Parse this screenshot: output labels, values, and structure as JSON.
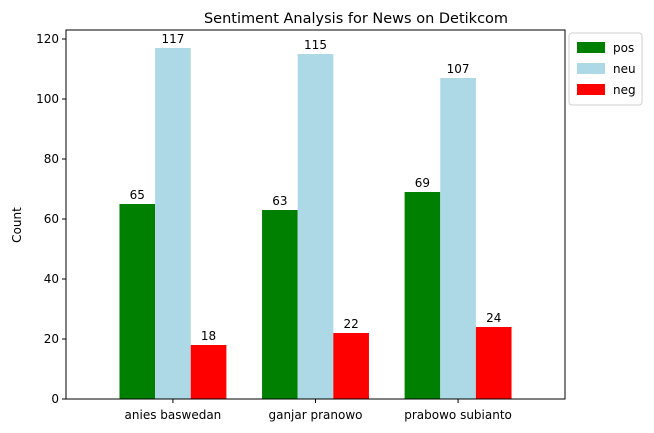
{
  "chart_data": {
    "type": "bar",
    "title": "Sentiment Analysis for News on Detikcom",
    "xlabel": "",
    "ylabel": "Count",
    "ylim": [
      0,
      123
    ],
    "yticks": [
      0,
      20,
      40,
      60,
      80,
      100,
      120
    ],
    "categories": [
      "anies baswedan",
      "ganjar pranowo",
      "prabowo subianto"
    ],
    "series": [
      {
        "name": "pos",
        "color": "#008000",
        "values": [
          65,
          63,
          69
        ]
      },
      {
        "name": "neu",
        "color": "#add8e6",
        "values": [
          117,
          115,
          107
        ]
      },
      {
        "name": "neg",
        "color": "#ff0000",
        "values": [
          18,
          22,
          24
        ]
      }
    ],
    "grid": false,
    "legend": "outside-top-right"
  }
}
